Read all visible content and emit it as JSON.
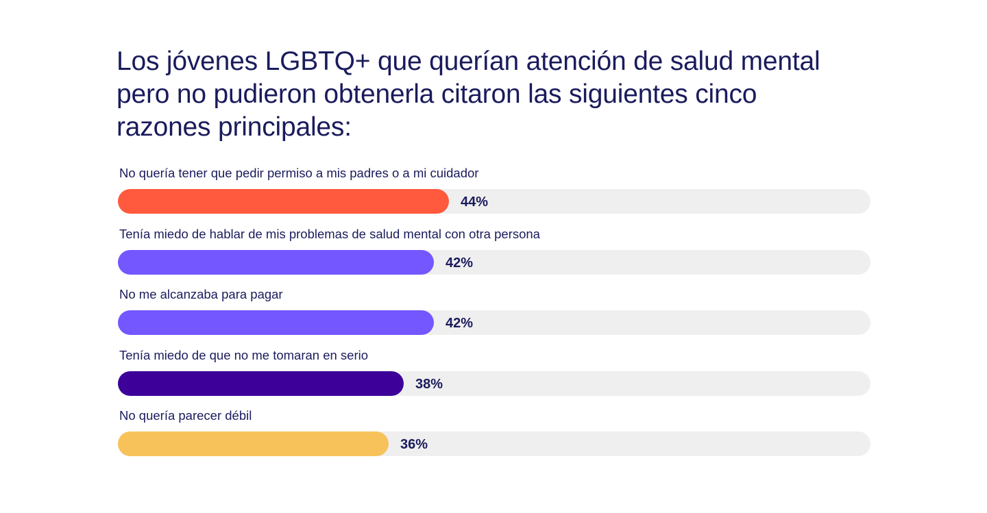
{
  "title": "Los jóvenes LGBTQ+ que querían atención de salud mental pero no pudieron obtenerla citaron las siguientes cinco razones principales:",
  "chart_data": {
    "type": "bar",
    "orientation": "horizontal",
    "title": "Los jóvenes LGBTQ+ que querían atención de salud mental pero no pudieron obtenerla citaron las siguientes cinco razones principales:",
    "xlim": [
      0,
      100
    ],
    "grid": false,
    "categories": [
      "No quería tener que pedir permiso a mis padres o a mi cuidador",
      "Tenía miedo de hablar de mis problemas de salud mental con otra persona",
      "No me alcanzaba para pagar",
      "Tenía miedo de que no me tomaran en serio",
      "No quería parecer débil"
    ],
    "values": [
      44,
      42,
      42,
      38,
      36
    ],
    "value_labels": [
      "44%",
      "42%",
      "42%",
      "38%",
      "36%"
    ],
    "colors": [
      "#ff5a3d",
      "#7457ff",
      "#7457ff",
      "#3d0099",
      "#f8c25a"
    ],
    "track_color": "#efefef"
  }
}
